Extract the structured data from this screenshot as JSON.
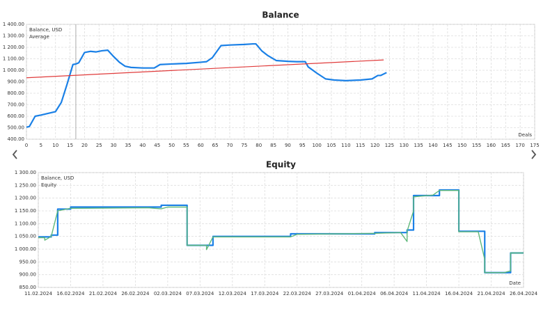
{
  "chart_data": [
    {
      "type": "line",
      "title": "Balance",
      "x_label": "Deals",
      "cursor_x": 17,
      "xlim": [
        0,
        175
      ],
      "xticks": [
        0,
        5,
        10,
        15,
        20,
        25,
        30,
        35,
        40,
        45,
        50,
        55,
        60,
        65,
        70,
        75,
        80,
        85,
        90,
        95,
        100,
        105,
        110,
        115,
        120,
        125,
        130,
        135,
        140,
        145,
        150,
        155,
        160,
        165,
        170,
        175
      ],
      "ylim": [
        400,
        1400
      ],
      "yticks": [
        {
          "value": 400,
          "label": "400.00"
        },
        {
          "value": 500,
          "label": "500.00"
        },
        {
          "value": 600,
          "label": "600.00"
        },
        {
          "value": 700,
          "label": "700.00"
        },
        {
          "value": 800,
          "label": "800.00"
        },
        {
          "value": 900,
          "label": "900.00"
        },
        {
          "value": 1000,
          "label": "1 000.00"
        },
        {
          "value": 1100,
          "label": "1 100.00"
        },
        {
          "value": 1200,
          "label": "1 200.00"
        },
        {
          "value": 1300,
          "label": "1 300.00"
        },
        {
          "value": 1400,
          "label": "1 400.00"
        }
      ],
      "grid": true,
      "series": [
        {
          "name": "Balance, USD",
          "color": "#1a80e6",
          "width": 2.2,
          "x": [
            0,
            1,
            3,
            5,
            10,
            12,
            14,
            16,
            17,
            18,
            20,
            22,
            24,
            26,
            28,
            30,
            32,
            34,
            36,
            40,
            44,
            46,
            50,
            55,
            60,
            62,
            64,
            67,
            70,
            75,
            78,
            79,
            81,
            83,
            86,
            90,
            93,
            96,
            97,
            100,
            103,
            106,
            110,
            115,
            119,
            121,
            122,
            124
          ],
          "values": [
            505,
            510,
            600,
            610,
            640,
            720,
            880,
            1050,
            1055,
            1065,
            1155,
            1165,
            1160,
            1170,
            1175,
            1120,
            1070,
            1035,
            1025,
            1020,
            1020,
            1050,
            1055,
            1060,
            1070,
            1075,
            1110,
            1215,
            1220,
            1225,
            1230,
            1230,
            1170,
            1130,
            1085,
            1078,
            1075,
            1075,
            1030,
            975,
            925,
            915,
            910,
            915,
            925,
            955,
            955,
            980
          ]
        },
        {
          "name": "Average",
          "color": "#e03a3a",
          "width": 1.2,
          "x": [
            0,
            123
          ],
          "values": [
            935,
            1090
          ]
        }
      ]
    },
    {
      "type": "line",
      "title": "Equity",
      "x_label": "Date",
      "x_type": "date",
      "xlim": [
        "11.02.2024",
        "26.04.2024"
      ],
      "xticks": [
        "11.02.2024",
        "16.02.2024",
        "21.02.2024",
        "26.02.2024",
        "02.03.2024",
        "07.03.2024",
        "12.03.2024",
        "17.03.2024",
        "22.03.2024",
        "27.03.2024",
        "01.04.2024",
        "06.04.2024",
        "11.04.2024",
        "16.04.2024",
        "21.04.2024",
        "26.04.2024"
      ],
      "ylim": [
        850,
        1300
      ],
      "yticks": [
        {
          "value": 850,
          "label": "850.00"
        },
        {
          "value": 900,
          "label": "900.00"
        },
        {
          "value": 950,
          "label": "950.00"
        },
        {
          "value": 1000,
          "label": "1 000.00"
        },
        {
          "value": 1050,
          "label": "1 050.00"
        },
        {
          "value": 1100,
          "label": "1 100.00"
        },
        {
          "value": 1150,
          "label": "1 150.00"
        },
        {
          "value": 1200,
          "label": "1 200.00"
        },
        {
          "value": 1250,
          "label": "1 250.00"
        },
        {
          "value": 1300,
          "label": "1 300.00"
        }
      ],
      "grid": true,
      "series": [
        {
          "name": "Balance, USD",
          "color": "#1a80e6",
          "width": 2.2,
          "x": [
            "11.02.2024",
            "13.02.2024",
            "13.02.2024",
            "14.02.2024",
            "14.02.2024",
            "16.02.2024",
            "16.02.2024",
            "01.03.2024",
            "01.03.2024",
            "05.03.2024",
            "05.03.2024",
            "09.03.2024",
            "09.03.2024",
            "21.03.2024",
            "21.03.2024",
            "03.04.2024",
            "03.04.2024",
            "08.04.2024",
            "08.04.2024",
            "09.04.2024",
            "09.04.2024",
            "13.04.2024",
            "13.04.2024",
            "16.04.2024",
            "16.04.2024",
            "20.04.2024",
            "20.04.2024",
            "24.04.2024",
            "24.04.2024",
            "26.04.2024"
          ],
          "values": [
            1048,
            1048,
            1055,
            1055,
            1157,
            1157,
            1165,
            1165,
            1172,
            1172,
            1015,
            1015,
            1050,
            1050,
            1060,
            1060,
            1065,
            1065,
            1075,
            1075,
            1210,
            1210,
            1232,
            1232,
            1070,
            1070,
            908,
            908,
            985,
            985
          ]
        },
        {
          "name": "Equity",
          "color": "#5fb87a",
          "width": 1.4,
          "x": [
            "11.02.2024",
            "12.02.2024",
            "12.02.2024",
            "13.02.2024",
            "14.02.2024",
            "16.02.2024",
            "28.02.2024",
            "01.03.2024",
            "02.03.2024",
            "05.03.2024",
            "05.03.2024",
            "08.03.2024",
            "08.03.2024",
            "09.03.2024",
            "21.03.2024",
            "22.03.2024",
            "03.04.2024",
            "07.04.2024",
            "08.04.2024",
            "08.04.2024",
            "09.04.2024",
            "09.04.2024",
            "12.04.2024",
            "13.04.2024",
            "16.04.2024",
            "16.04.2024",
            "19.04.2024",
            "20.04.2024",
            "20.04.2024",
            "23.04.2024",
            "24.04.2024",
            "24.04.2024",
            "26.04.2024"
          ],
          "values": [
            1045,
            1045,
            1035,
            1050,
            1150,
            1160,
            1162,
            1158,
            1165,
            1165,
            1015,
            1015,
            998,
            1048,
            1048,
            1058,
            1062,
            1065,
            1030,
            1070,
            1150,
            1205,
            1212,
            1230,
            1230,
            1068,
            1068,
            960,
            908,
            908,
            915,
            985,
            985
          ]
        }
      ]
    }
  ]
}
